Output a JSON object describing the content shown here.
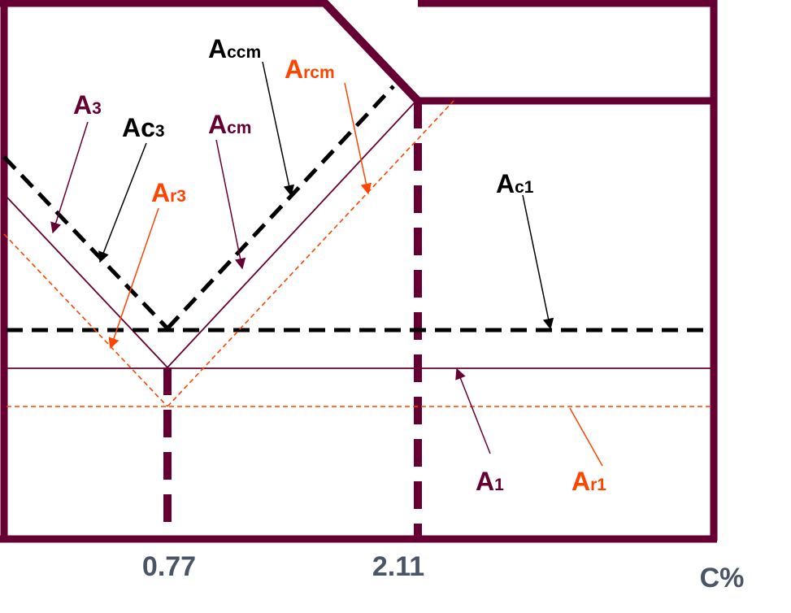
{
  "colors": {
    "frame": "#660033",
    "equilibrium": "#660033",
    "heating": "#000000",
    "cooling": "#ff4400",
    "axis_text": "#4a5566"
  },
  "axis": {
    "x_label": "C%",
    "ticks": [
      "0.77",
      "2.11"
    ]
  },
  "labels": {
    "A3": {
      "main": "A",
      "sub": "3"
    },
    "Ac3": {
      "main": "Ac",
      "sub": "3"
    },
    "Ar3": {
      "main": "A",
      "sub": "r3"
    },
    "Accm": {
      "main": "A",
      "sub": "ccm"
    },
    "Arcm": {
      "main": "A",
      "sub": "rcm"
    },
    "Acm": {
      "main": "A",
      "sub": "cm"
    },
    "Ac1": {
      "main": "A",
      "sub": "c1"
    },
    "A1": {
      "main": "A",
      "sub": "1"
    },
    "Ar1": {
      "main": "A",
      "sub": "r1"
    }
  }
}
